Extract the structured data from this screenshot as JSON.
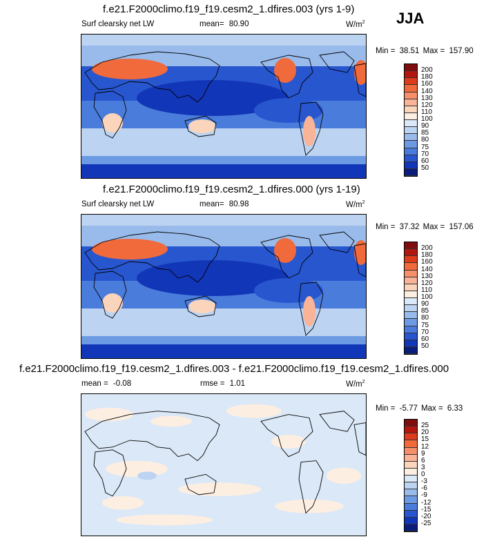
{
  "season": "JJA",
  "panels": [
    {
      "title": "f.e21.F2000climo.f19_f19.cesm2_1.dfires.003 (yrs 1-9)",
      "left_label": "Surf clearsky net LW",
      "mean_label": "mean=",
      "mean_value": "80.90",
      "units": "W/m",
      "units_sup": "2",
      "min_label": "Min =",
      "min_value": "38.51",
      "max_label": "Max =",
      "max_value": "157.90"
    },
    {
      "title": "f.e21.F2000climo.f19_f19.cesm2_1.dfires.000 (yrs 1-19)",
      "left_label": "Surf clearsky net LW",
      "mean_label": "mean=",
      "mean_value": "80.98",
      "units": "W/m",
      "units_sup": "2",
      "min_label": "Min =",
      "min_value": "37.32",
      "max_label": "Max =",
      "max_value": "157.06"
    },
    {
      "title": "f.e21.F2000climo.f19_f19.cesm2_1.dfires.003 - f.e21.F2000climo.f19_f19.cesm2_1.dfires.000",
      "mean_label": "mean =",
      "mean_value": "-0.08",
      "rmse_label": "rmse =",
      "rmse_value": "1.01",
      "units": "W/m",
      "units_sup": "2",
      "min_label": "Min =",
      "min_value": "-5.77",
      "max_label": "Max =",
      "max_value": "6.33"
    }
  ],
  "chart_data": [
    {
      "type": "heatmap",
      "title": "f.e21.F2000climo.f19_f19.cesm2_1.dfires.003 (yrs 1-9)",
      "variable": "Surf clearsky net LW",
      "units": "W/m2",
      "mean": 80.9,
      "min": 38.51,
      "max": 157.9,
      "colorbar_levels": [
        200,
        180,
        160,
        140,
        130,
        120,
        110,
        100,
        90,
        85,
        80,
        75,
        70,
        60,
        50
      ],
      "colorbar_colors": [
        "#7f0d0d",
        "#b3160e",
        "#de3a1c",
        "#f06a3c",
        "#f5906a",
        "#f9b396",
        "#fbd4bc",
        "#fdeee2",
        "#dbe8f7",
        "#bcd3f1",
        "#98bbeb",
        "#6d9be3",
        "#4a7ddb",
        "#2756cf",
        "#1236b8",
        "#0a1d7a"
      ],
      "regions": [
        {
          "name": "sahara-arabia",
          "value": 150
        },
        {
          "name": "western-us",
          "value": 140
        },
        {
          "name": "south-america-west",
          "value": 125
        },
        {
          "name": "southern-africa",
          "value": 115
        },
        {
          "name": "australia",
          "value": 110
        },
        {
          "name": "tropical-ocean",
          "value": 60
        },
        {
          "name": "southern-ocean",
          "value": 85
        },
        {
          "name": "antarctica",
          "value": 50
        }
      ]
    },
    {
      "type": "heatmap",
      "title": "f.e21.F2000climo.f19_f19.cesm2_1.dfires.000 (yrs 1-19)",
      "variable": "Surf clearsky net LW",
      "units": "W/m2",
      "mean": 80.98,
      "min": 37.32,
      "max": 157.06,
      "colorbar_levels": [
        200,
        180,
        160,
        140,
        130,
        120,
        110,
        100,
        90,
        85,
        80,
        75,
        70,
        60,
        50
      ],
      "colorbar_colors": [
        "#7f0d0d",
        "#b3160e",
        "#de3a1c",
        "#f06a3c",
        "#f5906a",
        "#f9b396",
        "#fbd4bc",
        "#fdeee2",
        "#dbe8f7",
        "#bcd3f1",
        "#98bbeb",
        "#6d9be3",
        "#4a7ddb",
        "#2756cf",
        "#1236b8",
        "#0a1d7a"
      ],
      "regions": [
        {
          "name": "sahara-arabia",
          "value": 150
        },
        {
          "name": "western-us",
          "value": 140
        },
        {
          "name": "south-america-west",
          "value": 125
        },
        {
          "name": "southern-africa",
          "value": 115
        },
        {
          "name": "australia",
          "value": 110
        },
        {
          "name": "tropical-ocean",
          "value": 60
        },
        {
          "name": "southern-ocean",
          "value": 85
        },
        {
          "name": "antarctica",
          "value": 50
        }
      ]
    },
    {
      "type": "heatmap",
      "title": "f.e21.F2000climo.f19_f19.cesm2_1.dfires.003 - f.e21.F2000climo.f19_f19.cesm2_1.dfires.000",
      "units": "W/m2",
      "mean": -0.08,
      "rmse": 1.01,
      "min": -5.77,
      "max": 6.33,
      "colorbar_levels": [
        25,
        20,
        15,
        12,
        9,
        6,
        3,
        0,
        -3,
        -6,
        -9,
        -12,
        -15,
        -20,
        -25
      ],
      "colorbar_colors": [
        "#7f0d0d",
        "#b3160e",
        "#de3a1c",
        "#f06a3c",
        "#f5906a",
        "#f9b396",
        "#fbd4bc",
        "#fdeee2",
        "#dbe8f7",
        "#bcd3f1",
        "#98bbeb",
        "#6d9be3",
        "#4a7ddb",
        "#2756cf",
        "#1236b8",
        "#0a1d7a"
      ],
      "regions": [
        {
          "name": "background",
          "value": -1.5
        },
        {
          "name": "positive-patches",
          "value": 1.5
        }
      ]
    }
  ]
}
